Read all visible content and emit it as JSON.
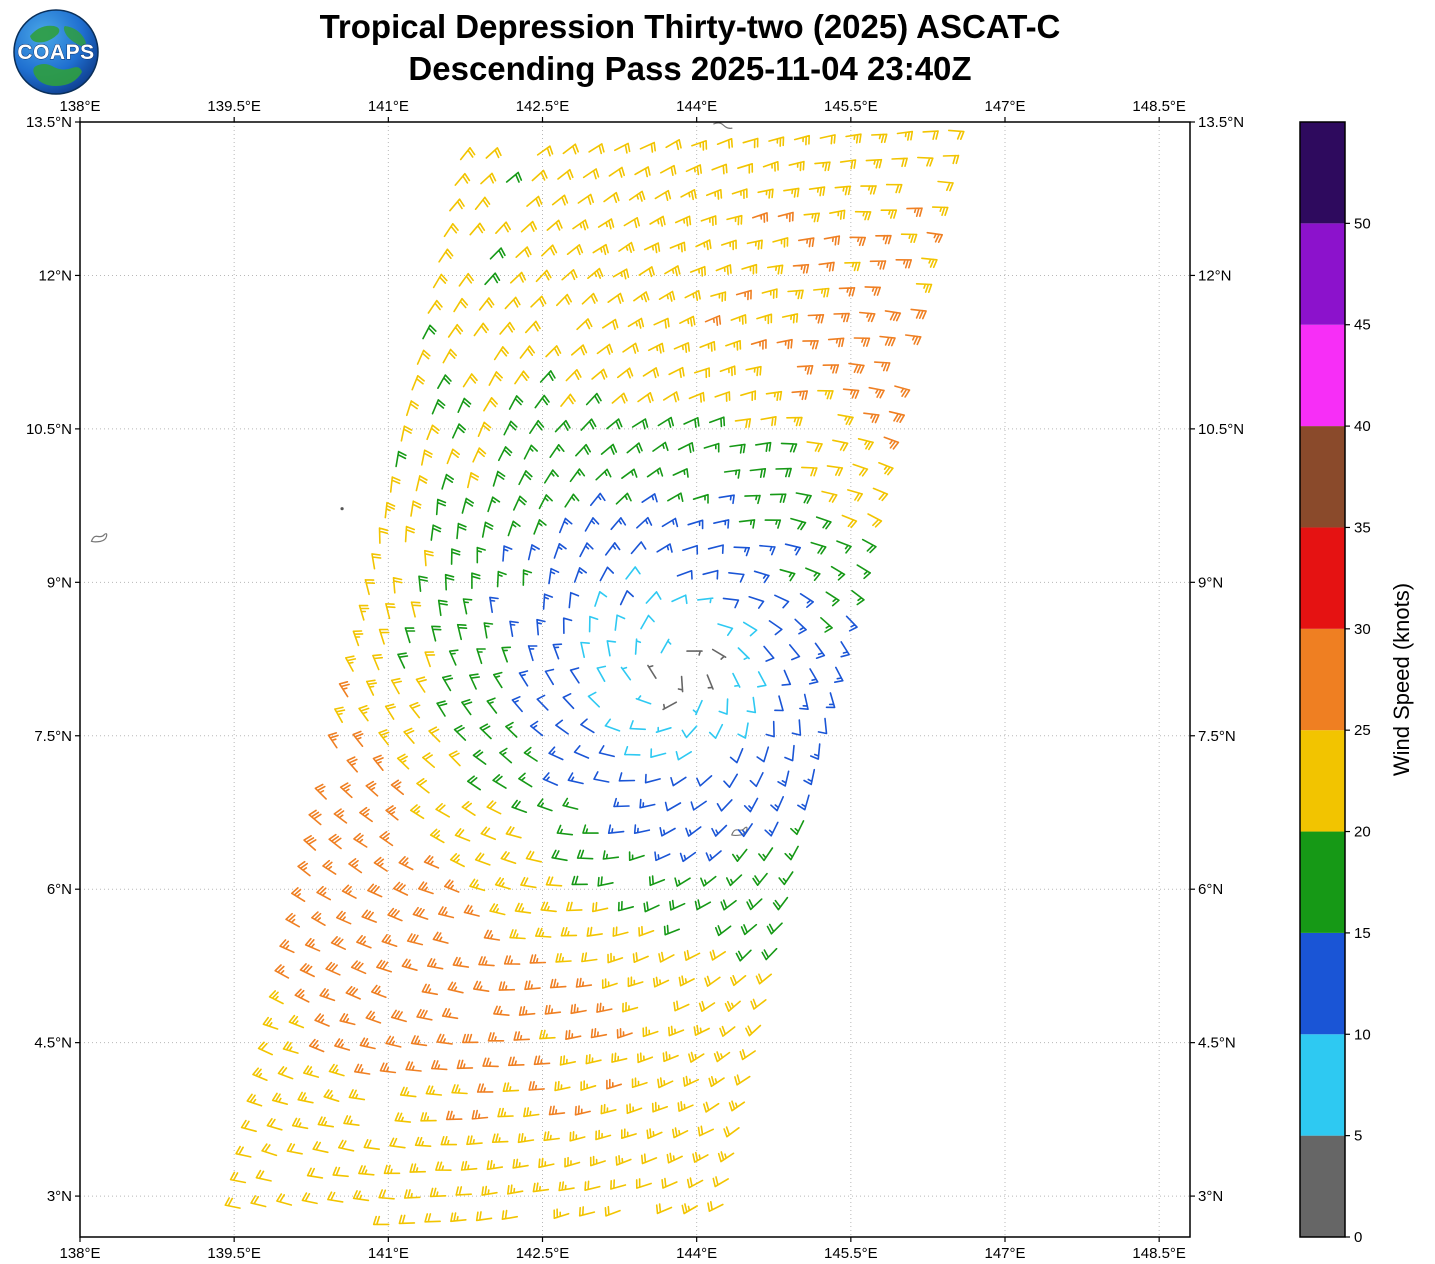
{
  "header": {
    "logo_text": "COAPS",
    "title_line1": "Tropical Depression Thirty-two (2025) ASCAT-C",
    "title_line2": "Descending Pass 2025-11-04 23:40Z"
  },
  "chart_data": {
    "type": "wind_barb_map",
    "title": "Tropical Depression Thirty-two (2025) ASCAT-C",
    "subtitle": "Descending Pass 2025-11-04 23:40Z",
    "projection": "lat-lon",
    "lon_range": [
      138.0,
      148.8
    ],
    "lat_range": [
      2.6,
      13.5
    ],
    "grid": "dotted",
    "x_ticks": {
      "values": [
        138,
        139.5,
        141,
        142.5,
        144,
        145.5,
        147,
        148.5
      ],
      "labels": [
        "138°E",
        "139.5°E",
        "141°E",
        "142.5°E",
        "144°E",
        "145.5°E",
        "147°E",
        "148.5°E"
      ]
    },
    "y_ticks": {
      "values": [
        3,
        4.5,
        6,
        7.5,
        9,
        10.5,
        12,
        13.5
      ],
      "labels": [
        "3°N",
        "4.5°N",
        "6°N",
        "7.5°N",
        "9°N",
        "10.5°N",
        "12°N",
        "13.5°N"
      ]
    },
    "colorbar": {
      "label": "Wind Speed (knots)",
      "boundaries": [
        0,
        5,
        10,
        15,
        20,
        25,
        30,
        35,
        40,
        45,
        50,
        55
      ],
      "tick_values": [
        0,
        5,
        10,
        15,
        20,
        25,
        30,
        35,
        40,
        45,
        50
      ],
      "tick_labels": [
        "0",
        "5",
        "10",
        "15",
        "20",
        "25",
        "30",
        "35",
        "40",
        "45",
        "50"
      ],
      "colors": [
        "#666666",
        "#2ec9f2",
        "#1a55d6",
        "#169916",
        "#f2c400",
        "#ef7f22",
        "#e51212",
        "#8a4a2b",
        "#f72ef7",
        "#8c12cc",
        "#2e0a5e"
      ]
    },
    "barb_convention": {
      "half_barb_kt": 5,
      "full_barb_kt": 10,
      "pennant_kt": 50
    },
    "wind_field": {
      "storm": {
        "name": "Tropical Depression Thirty-two",
        "center_lon": 143.8,
        "center_lat": 8.1,
        "rotation": "counterclockwise",
        "inflow_deg": 25,
        "profile": [
          {
            "radius_deg": 0.0,
            "speed_kt": 2.5
          },
          {
            "radius_deg": 1.0,
            "speed_kt": 10.5
          },
          {
            "radius_deg": 2.0,
            "speed_kt": 16.0
          },
          {
            "radius_deg": 3.2,
            "speed_kt": 21.0
          },
          {
            "radius_deg": 5.5,
            "speed_kt": 20.3
          }
        ],
        "outer_max": {
          "speed_boost_kt": 7,
          "radius_deg": 3.9,
          "width_deg": 1.7,
          "axis_bearing_deg": 40
        }
      },
      "swath": {
        "center_lon_at_lat3": 142.0,
        "center_lon_slope_per_deg_lat": 0.2095,
        "half_width_deg": 2.45,
        "grid_spacing_deg": 0.25,
        "row_tilt": 0.06,
        "speed_noise_kt": 2.6
      }
    },
    "map_features": [
      {
        "kind": "island-outline",
        "lon": 138.17,
        "lat": 9.42
      },
      {
        "kind": "islet-dot",
        "lon": 140.55,
        "lat": 9.72
      },
      {
        "kind": "coastline",
        "lon": 144.25,
        "lat": 13.44
      },
      {
        "kind": "island-outline",
        "lon": 144.4,
        "lat": 6.55
      }
    ]
  }
}
